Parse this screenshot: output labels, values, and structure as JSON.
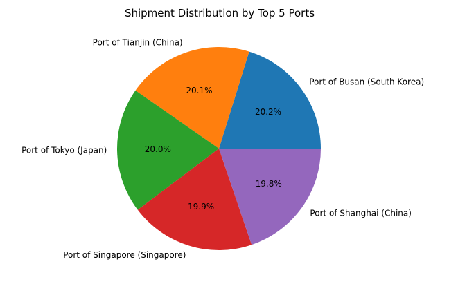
{
  "chart_data": {
    "type": "pie",
    "title": "Shipment Distribution by Top 5 Ports",
    "start_angle_deg": 0,
    "direction": "counterclockwise",
    "legend": "none",
    "slices": [
      {
        "label": "Port of Busan (South Korea)",
        "value": 20.2,
        "pct_label": "20.2%",
        "color": "#1f77b4"
      },
      {
        "label": "Port of Tianjin (China)",
        "value": 20.1,
        "pct_label": "20.1%",
        "color": "#ff7f0e"
      },
      {
        "label": "Port of Tokyo (Japan)",
        "value": 20.0,
        "pct_label": "20.0%",
        "color": "#2ca02c"
      },
      {
        "label": "Port of Singapore (Singapore)",
        "value": 19.9,
        "pct_label": "19.9%",
        "color": "#d62728"
      },
      {
        "label": "Port of Shanghai (China)",
        "value": 19.8,
        "pct_label": "19.8%",
        "color": "#9467bd"
      }
    ]
  }
}
